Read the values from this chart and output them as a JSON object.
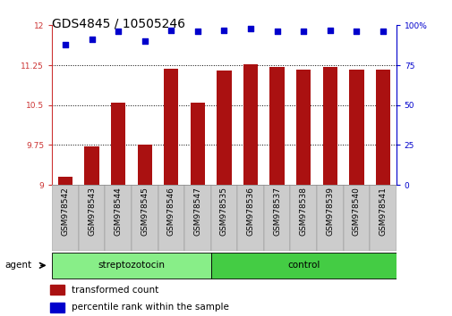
{
  "title": "GDS4845 / 10505246",
  "samples": [
    "GSM978542",
    "GSM978543",
    "GSM978544",
    "GSM978545",
    "GSM978546",
    "GSM978547",
    "GSM978535",
    "GSM978536",
    "GSM978537",
    "GSM978538",
    "GSM978539",
    "GSM978540",
    "GSM978541"
  ],
  "bar_values": [
    9.15,
    9.73,
    10.55,
    9.76,
    11.18,
    10.55,
    11.15,
    11.27,
    11.22,
    11.17,
    11.22,
    11.17,
    11.17
  ],
  "percentile_values": [
    88,
    91,
    96,
    90,
    97,
    96,
    97,
    98,
    96,
    96,
    97,
    96,
    96
  ],
  "bar_color": "#aa1111",
  "dot_color": "#0000cc",
  "ylim_left": [
    9.0,
    12.0
  ],
  "ylim_right": [
    0,
    100
  ],
  "yticks_left": [
    9.0,
    9.75,
    10.5,
    11.25,
    12.0
  ],
  "ytick_labels_left": [
    "9",
    "9.75",
    "10.5",
    "11.25",
    "12"
  ],
  "yticks_right": [
    0,
    25,
    50,
    75,
    100
  ],
  "ytick_labels_right": [
    "0",
    "25",
    "50",
    "75",
    "100%"
  ],
  "group1_label": "streptozotocin",
  "group2_label": "control",
  "group1_count": 6,
  "group2_count": 7,
  "group1_color": "#88ee88",
  "group2_color": "#44cc44",
  "agent_label": "agent",
  "legend_bar_label": "transformed count",
  "legend_dot_label": "percentile rank within the sample",
  "hlines": [
    9.75,
    10.5,
    11.25
  ],
  "bar_width": 0.55,
  "background_color": "#ffffff",
  "title_fontsize": 10,
  "tick_fontsize": 6.5,
  "legend_fontsize": 7.5,
  "label_fontsize": 7.5
}
